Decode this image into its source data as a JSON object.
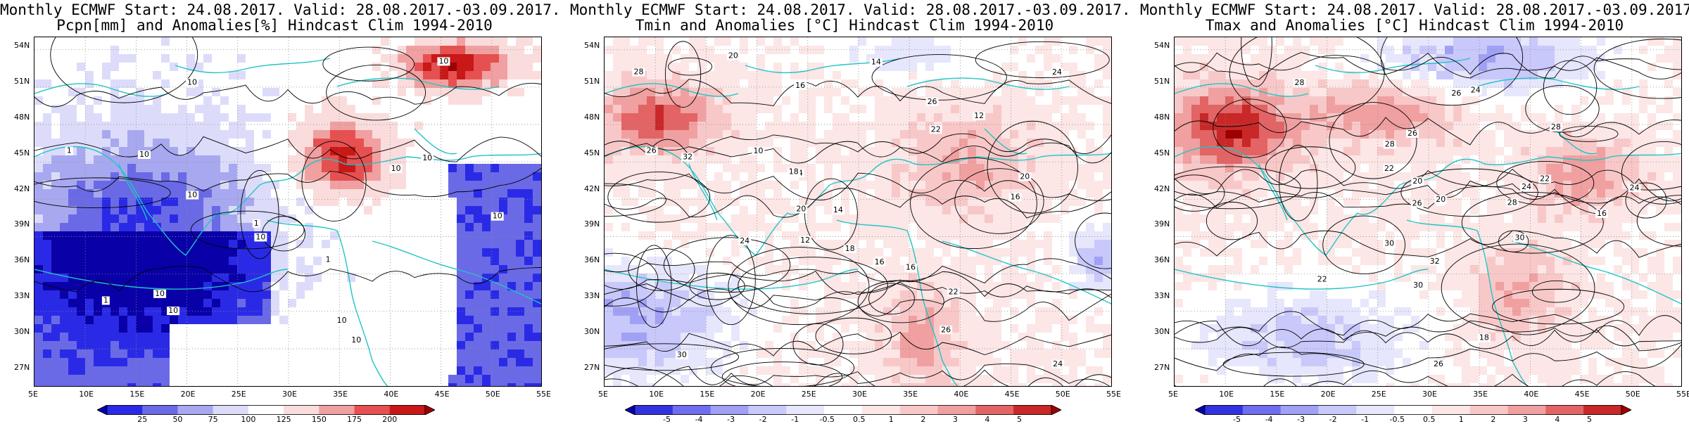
{
  "panels": [
    {
      "id": "pcpn",
      "title_line1": "Monthly ECMWF Start: 24.08.2017. Valid: 28.08.2017.-03.09.2017.",
      "title_line2": "Pcpn[mm] and Anomalies[%] Hindcast Clim 1994-2010",
      "colorbar_labels": [
        "25",
        "50",
        "75",
        "100",
        "125",
        "150",
        "175",
        "200"
      ],
      "contour_labels": [
        "10",
        "10",
        "10",
        "10",
        "10",
        "10",
        "10",
        "10",
        "10",
        "10",
        "1",
        "1",
        "1",
        "1",
        "10",
        "10"
      ],
      "scheme": "precip"
    },
    {
      "id": "tmin",
      "title_line1": "Monthly ECMWF Start: 24.08.2017. Valid: 28.08.2017.-03.09.2017.",
      "title_line2": "Tmin and Anomalies [°C] Hindcast Clim 1994-2010",
      "colorbar_labels": [
        "-5",
        "-4",
        "-3",
        "-2",
        "-1",
        "-0.5",
        "0.5",
        "1",
        "2",
        "3",
        "4",
        "5"
      ],
      "contour_labels": [
        "12",
        "14",
        "16",
        "20",
        "14",
        "16",
        "18",
        "12",
        "24",
        "18",
        "16",
        "20",
        "24",
        "26",
        "22",
        "28",
        "20",
        "26",
        "30",
        "32",
        "24",
        "14",
        "26",
        "22",
        "16",
        "10"
      ],
      "scheme": "temp"
    },
    {
      "id": "tmax",
      "title_line1": "Monthly ECMWF Start: 24.08.2017. Valid: 28.08.2017.-03.09.2017.",
      "title_line2": "Tmax and Anomalies [°C] Hindcast Clim 1994-2010",
      "colorbar_labels": [
        "-5",
        "-4",
        "-3",
        "-2",
        "-1",
        "-0.5",
        "0.5",
        "1",
        "2",
        "3",
        "4",
        "5"
      ],
      "contour_labels": [
        "16",
        "18",
        "20",
        "22",
        "24",
        "26",
        "28",
        "30",
        "22",
        "24",
        "26",
        "28",
        "30",
        "26",
        "24",
        "28",
        "30",
        "32",
        "26",
        "28",
        "22",
        "20"
      ],
      "scheme": "temp"
    }
  ],
  "lat_labels": [
    "54N",
    "51N",
    "48N",
    "45N",
    "42N",
    "39N",
    "36N",
    "33N",
    "30N",
    "27N"
  ],
  "lon_labels": [
    "5E",
    "10E",
    "15E",
    "20E",
    "25E",
    "30E",
    "35E",
    "40E",
    "45E",
    "50E",
    "55E"
  ],
  "colors": {
    "coast": "#22c4c4",
    "deep_blue": "#0a00a8",
    "deep_red": "#9e0000"
  }
}
